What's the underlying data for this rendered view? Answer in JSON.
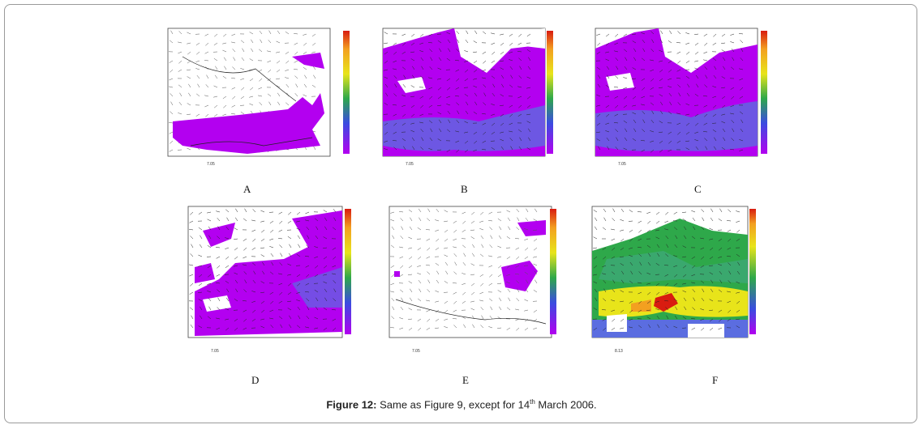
{
  "figure": {
    "caption_label": "Figure 12:",
    "caption_pre": " Same as Figure 9, except for 14",
    "caption_sup": "th",
    "caption_post": " March 2006."
  },
  "panels": [
    {
      "label": "A",
      "scale_text": "7.05"
    },
    {
      "label": "B",
      "scale_text": "7.05"
    },
    {
      "label": "C",
      "scale_text": "7.05"
    },
    {
      "label": "D",
      "scale_text": "7.05"
    },
    {
      "label": "E",
      "scale_text": "7.05"
    },
    {
      "label": "F",
      "scale_text": "8.13"
    }
  ],
  "colors": {
    "shade": "#b300f0",
    "shade_dark": "#7a38e8",
    "blue_band": "#5b6de0",
    "green": "#2ea84a",
    "yellow": "#e8e41a",
    "red": "#d81c10",
    "border": "#333333"
  }
}
